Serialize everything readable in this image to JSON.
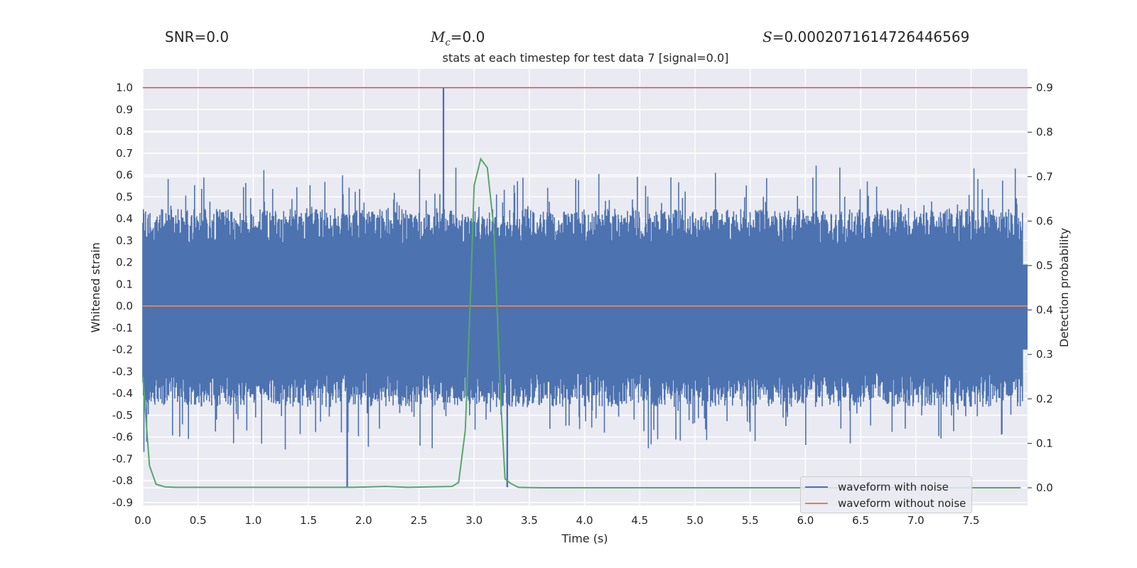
{
  "header": {
    "snr": "SNR=0.0",
    "mc_symbol": "M",
    "mc_sub": "c",
    "mc_value": "=0.0",
    "s_symbol": "S",
    "s_value": "=0.0002071614726446569"
  },
  "chart_data": {
    "type": "line",
    "title": "stats at each timestep for test data 7 [signal=0.0]",
    "xlabel": "Time (s)",
    "ylabel": "Whitened strain",
    "y2label": "Detection probability",
    "xlim": [
      0.0,
      7.97
    ],
    "ylim": [
      -0.92,
      1.09
    ],
    "y2lim": [
      -0.04,
      0.955
    ],
    "xticks": [
      "0.0",
      "0.5",
      "1.0",
      "1.5",
      "2.0",
      "2.5",
      "3.0",
      "3.5",
      "4.0",
      "4.5",
      "5.0",
      "5.5",
      "6.0",
      "6.5",
      "7.0",
      "7.5"
    ],
    "yticks": [
      "1.0",
      "0.9",
      "0.8",
      "0.7",
      "0.6",
      "0.5",
      "0.4",
      "0.3",
      "0.2",
      "0.1",
      "0.0",
      "-0.1",
      "-0.2",
      "-0.3",
      "-0.4",
      "-0.5",
      "-0.6",
      "-0.7",
      "-0.8",
      "-0.9"
    ],
    "y2ticks": [
      "0.9",
      "0.8",
      "0.7",
      "0.6",
      "0.5",
      "0.4",
      "0.3",
      "0.2",
      "0.1",
      "0.0"
    ],
    "threshold": {
      "value": 1.0,
      "color": "#c44e52"
    },
    "series": [
      {
        "name": "waveform with noise",
        "color": "#4c72b0",
        "axis": "left",
        "note": "dense noise trace; envelope peaks read from figure",
        "extremes": {
          "max_time": 2.72,
          "max_value": 1.0,
          "min_time": 1.85,
          "min_value": -0.83,
          "min2_time": 3.3,
          "min2_value": -0.83
        },
        "typical_upper": 0.38,
        "typical_lower": -0.42
      },
      {
        "name": "waveform without noise",
        "color": "#dd8452",
        "axis": "left",
        "constant": 0.0
      },
      {
        "name": "detection probability",
        "color": "#55a868",
        "axis": "right",
        "x": [
          0.0,
          0.06,
          0.12,
          0.2,
          0.3,
          0.5,
          1.0,
          1.5,
          1.9,
          2.2,
          2.4,
          2.8,
          2.86,
          2.92,
          2.97,
          3.0,
          3.06,
          3.12,
          3.18,
          3.24,
          3.28,
          3.33,
          3.4,
          3.6,
          5.0,
          7.95
        ],
        "y": [
          0.25,
          0.05,
          0.008,
          0.002,
          0.001,
          0.001,
          0.001,
          0.001,
          0.001,
          0.003,
          0.001,
          0.003,
          0.012,
          0.13,
          0.45,
          0.68,
          0.74,
          0.72,
          0.58,
          0.2,
          0.02,
          0.01,
          0.001,
          0.0,
          0.0,
          0.0
        ]
      }
    ],
    "legend": [
      "waveform with noise",
      "waveform without noise"
    ],
    "legend_position": "bottom-right",
    "grid": true
  }
}
